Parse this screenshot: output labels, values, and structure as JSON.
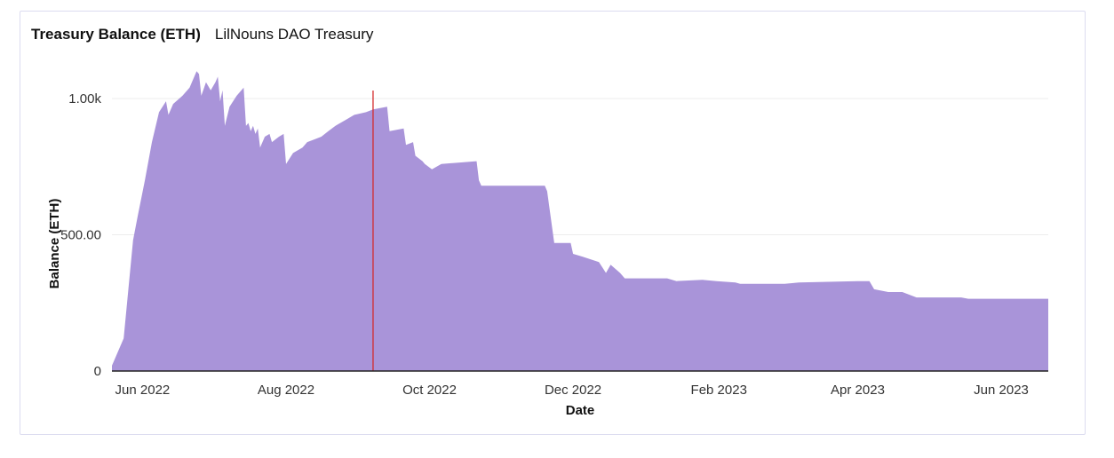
{
  "chart_data": {
    "type": "area",
    "title": "Treasury Balance (ETH)",
    "subtitle": "LilNouns DAO Treasury",
    "xlabel": "Date",
    "ylabel": "Balance (ETH)",
    "x_range": [
      "2022-05-19",
      "2023-06-21"
    ],
    "ylim": [
      0,
      1000
    ],
    "y_ticks": [
      {
        "value": 0,
        "label": "0"
      },
      {
        "value": 500,
        "label": "500.00"
      },
      {
        "value": 1000,
        "label": "1.00k"
      }
    ],
    "x_ticks": [
      {
        "date": "2022-06-01",
        "label": "Jun 2022"
      },
      {
        "date": "2022-08-01",
        "label": "Aug 2022"
      },
      {
        "date": "2022-10-01",
        "label": "Oct 2022"
      },
      {
        "date": "2022-12-01",
        "label": "Dec 2022"
      },
      {
        "date": "2023-02-01",
        "label": "Feb 2023"
      },
      {
        "date": "2023-04-01",
        "label": "Apr 2023"
      },
      {
        "date": "2023-06-01",
        "label": "Jun 2023"
      }
    ],
    "grid": true,
    "fill_color": "#a994d9",
    "marker_line": {
      "date": "2022-09-07",
      "color": "#d42b2b"
    },
    "series": [
      {
        "points": [
          [
            "2022-05-19",
            20
          ],
          [
            "2022-05-21",
            60
          ],
          [
            "2022-05-24",
            120
          ],
          [
            "2022-05-26",
            300
          ],
          [
            "2022-05-28",
            480
          ],
          [
            "2022-05-30",
            570
          ],
          [
            "2022-06-02",
            700
          ],
          [
            "2022-06-05",
            840
          ],
          [
            "2022-06-08",
            950
          ],
          [
            "2022-06-11",
            990
          ],
          [
            "2022-06-12",
            940
          ],
          [
            "2022-06-14",
            980
          ],
          [
            "2022-06-18",
            1010
          ],
          [
            "2022-06-21",
            1040
          ],
          [
            "2022-06-24",
            1100
          ],
          [
            "2022-06-25",
            1090
          ],
          [
            "2022-06-26",
            1010
          ],
          [
            "2022-06-28",
            1060
          ],
          [
            "2022-06-30",
            1030
          ],
          [
            "2022-07-02",
            1060
          ],
          [
            "2022-07-03",
            1080
          ],
          [
            "2022-07-04",
            990
          ],
          [
            "2022-07-05",
            1030
          ],
          [
            "2022-07-06",
            900
          ],
          [
            "2022-07-08",
            970
          ],
          [
            "2022-07-11",
            1010
          ],
          [
            "2022-07-14",
            1040
          ],
          [
            "2022-07-15",
            900
          ],
          [
            "2022-07-16",
            910
          ],
          [
            "2022-07-17",
            880
          ],
          [
            "2022-07-18",
            900
          ],
          [
            "2022-07-19",
            870
          ],
          [
            "2022-07-20",
            890
          ],
          [
            "2022-07-21",
            820
          ],
          [
            "2022-07-23",
            860
          ],
          [
            "2022-07-25",
            870
          ],
          [
            "2022-07-26",
            840
          ],
          [
            "2022-07-29",
            860
          ],
          [
            "2022-07-31",
            870
          ],
          [
            "2022-08-01",
            760
          ],
          [
            "2022-08-04",
            800
          ],
          [
            "2022-08-08",
            820
          ],
          [
            "2022-08-10",
            840
          ],
          [
            "2022-08-13",
            850
          ],
          [
            "2022-08-16",
            860
          ],
          [
            "2022-08-19",
            880
          ],
          [
            "2022-08-22",
            900
          ],
          [
            "2022-08-26",
            920
          ],
          [
            "2022-08-30",
            940
          ],
          [
            "2022-09-04",
            950
          ],
          [
            "2022-09-07",
            960
          ],
          [
            "2022-09-13",
            970
          ],
          [
            "2022-09-14",
            880
          ],
          [
            "2022-09-20",
            890
          ],
          [
            "2022-09-21",
            830
          ],
          [
            "2022-09-24",
            840
          ],
          [
            "2022-09-25",
            790
          ],
          [
            "2022-09-28",
            770
          ],
          [
            "2022-09-29",
            760
          ],
          [
            "2022-10-02",
            740
          ],
          [
            "2022-10-06",
            760
          ],
          [
            "2022-10-21",
            770
          ],
          [
            "2022-10-22",
            700
          ],
          [
            "2022-10-23",
            680
          ],
          [
            "2022-11-01",
            680
          ],
          [
            "2022-11-19",
            680
          ],
          [
            "2022-11-20",
            660
          ],
          [
            "2022-11-23",
            470
          ],
          [
            "2022-11-30",
            470
          ],
          [
            "2022-12-01",
            430
          ],
          [
            "2022-12-05",
            420
          ],
          [
            "2022-12-12",
            400
          ],
          [
            "2022-12-15",
            360
          ],
          [
            "2022-12-17",
            390
          ],
          [
            "2022-12-21",
            360
          ],
          [
            "2022-12-23",
            340
          ],
          [
            "2023-01-07",
            340
          ],
          [
            "2023-01-10",
            340
          ],
          [
            "2023-01-14",
            330
          ],
          [
            "2023-01-25",
            335
          ],
          [
            "2023-01-31",
            330
          ],
          [
            "2023-02-08",
            325
          ],
          [
            "2023-02-10",
            320
          ],
          [
            "2023-03-01",
            320
          ],
          [
            "2023-03-07",
            325
          ],
          [
            "2023-04-01",
            330
          ],
          [
            "2023-04-06",
            330
          ],
          [
            "2023-04-08",
            300
          ],
          [
            "2023-04-14",
            290
          ],
          [
            "2023-04-20",
            290
          ],
          [
            "2023-04-26",
            270
          ],
          [
            "2023-05-01",
            270
          ],
          [
            "2023-05-15",
            270
          ],
          [
            "2023-05-18",
            265
          ],
          [
            "2023-06-21",
            265
          ]
        ]
      }
    ]
  }
}
